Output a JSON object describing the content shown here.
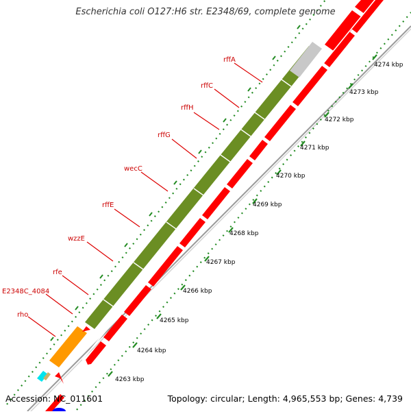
{
  "title": "Escherichia coli O127:H6 str. E2348/69, complete genome",
  "footer": {
    "accession": "Accession: NC_011601",
    "topology": "Topology: circular; Length: 4,965,553 bp; Genes: 4,739"
  },
  "ticks": [
    {
      "label": "4263 kbp"
    },
    {
      "label": "4264 kbp"
    },
    {
      "label": "4265 kbp"
    },
    {
      "label": "4266 kbp"
    },
    {
      "label": "4267 kbp"
    },
    {
      "label": "4268 kbp"
    },
    {
      "label": "4269 kbp"
    },
    {
      "label": "4270 kbp"
    },
    {
      "label": "4271 kbp"
    },
    {
      "label": "4272 kbp"
    },
    {
      "label": "4273 kbp"
    },
    {
      "label": "4274 kbp"
    }
  ],
  "gene_labels": [
    {
      "name": "rffA"
    },
    {
      "name": "rffC"
    },
    {
      "name": "rffH"
    },
    {
      "name": "rffG"
    },
    {
      "name": "wecC"
    },
    {
      "name": "rffE"
    },
    {
      "name": "wzzE"
    },
    {
      "name": "rfe"
    },
    {
      "name": "E2348C_4084"
    },
    {
      "name": "rho"
    }
  ],
  "colors": {
    "green_feature": "#6b8e23",
    "red_feature": "#ff0000",
    "orange_feature": "#ff9900",
    "gray_feature": "#c8c8c8",
    "cyan_feature": "#00e5ee",
    "blue_feature": "#0000ff",
    "tick_green": "#228b22",
    "label_red": "#cc0000"
  }
}
